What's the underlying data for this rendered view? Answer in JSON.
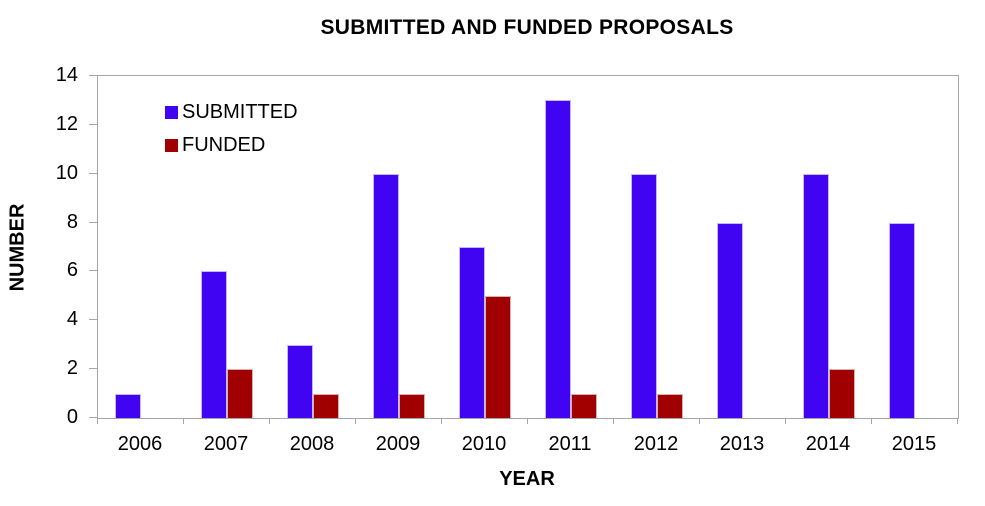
{
  "title": "SUBMITTED AND FUNDED PROPOSALS",
  "chart_data": {
    "type": "bar",
    "title": "SUBMITTED AND FUNDED PROPOSALS",
    "categories": [
      "2006",
      "2007",
      "2008",
      "2009",
      "2010",
      "2011",
      "2012",
      "2013",
      "2014",
      "2015"
    ],
    "series": [
      {
        "name": "SUBMITTED",
        "color": "#4104F2",
        "values": [
          1,
          6,
          3,
          10,
          7,
          13,
          10,
          8,
          10,
          8
        ]
      },
      {
        "name": "FUNDED",
        "color": "#A00000",
        "values": [
          0,
          2,
          1,
          1,
          5,
          1,
          1,
          0,
          2,
          0
        ]
      }
    ],
    "xlabel": "YEAR",
    "ylabel": "NUMBER",
    "ylim": [
      0,
      14
    ],
    "ytick_step": 2,
    "grid": false,
    "legend_position": "inside-top-left",
    "colors": {
      "axis": "#A6A6A6",
      "submitted_fill": "#4104F2",
      "submitted_border": "#C7B6F4",
      "funded_fill": "#A00000",
      "funded_border": "#DBAFAF"
    }
  }
}
